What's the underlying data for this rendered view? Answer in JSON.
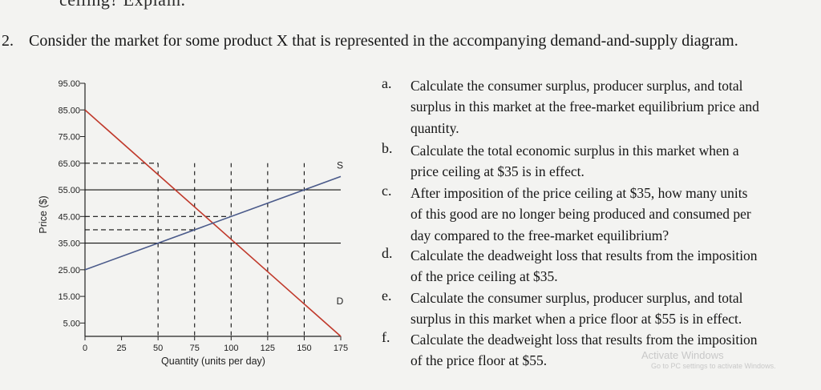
{
  "header_cut": "ceiling? Explain.",
  "question": {
    "number": "2.",
    "text": "Consider the market for some product X that is represented in the accompanying demand-and-supply diagram."
  },
  "chart_data": {
    "type": "line",
    "xlabel": "Quantity (units per day)",
    "ylabel": "Price ($)",
    "x_ticks": [
      "0",
      "25",
      "50",
      "75",
      "100",
      "125",
      "150",
      "175"
    ],
    "y_ticks": [
      "95.00",
      "85.00",
      "75.00",
      "65.00",
      "55.00",
      "45.00",
      "35.00",
      "25.00",
      "15.00",
      "5.00"
    ],
    "xlim": [
      0,
      175
    ],
    "ylim": [
      0,
      95
    ],
    "series": [
      {
        "name": "D",
        "x": [
          0,
          175
        ],
        "y": [
          85,
          0
        ],
        "color": "#c0392b"
      },
      {
        "name": "S",
        "x": [
          0,
          175
        ],
        "y": [
          25,
          60
        ],
        "color": "#4a5a8a"
      }
    ],
    "reference_lines": {
      "horizontal_dashed": [
        {
          "y": 65,
          "x_end": 50
        },
        {
          "y": 45,
          "x_end": 100
        },
        {
          "y": 40,
          "x_end": 75
        }
      ],
      "horizontal_solid": [
        55,
        35
      ],
      "vertical_dashed": [
        50,
        75,
        100,
        125,
        150
      ]
    }
  },
  "items": [
    {
      "letter": "a.",
      "lines": [
        "Calculate the consumer surplus, producer surplus, and total",
        "surplus in this market at the free-market equilibrium price and",
        "quantity."
      ]
    },
    {
      "letter": "b.",
      "lines": [
        "Calculate the total economic surplus in this market when a",
        "price ceiling at $35 is in effect."
      ]
    },
    {
      "letter": "c.",
      "lines": [
        "After imposition of the price ceiling at $35, how many units",
        "of this good are no longer being produced and consumed per",
        "day compared to the free-market equilibrium?"
      ]
    },
    {
      "letter": "d.",
      "lines": [
        "Calculate the deadweight loss that results from the imposition",
        "of the price ceiling at $35."
      ]
    },
    {
      "letter": "e.",
      "lines": [
        "Calculate the consumer surplus, producer surplus, and total",
        "surplus in this market when a price floor at $55 is in effect."
      ]
    },
    {
      "letter": "f.",
      "lines": [
        "Calculate the deadweight loss that results from the imposition",
        "of the price floor at $55."
      ]
    }
  ],
  "watermark": {
    "title": "Activate Windows",
    "subtitle": "Go to PC settings to activate Windows."
  }
}
